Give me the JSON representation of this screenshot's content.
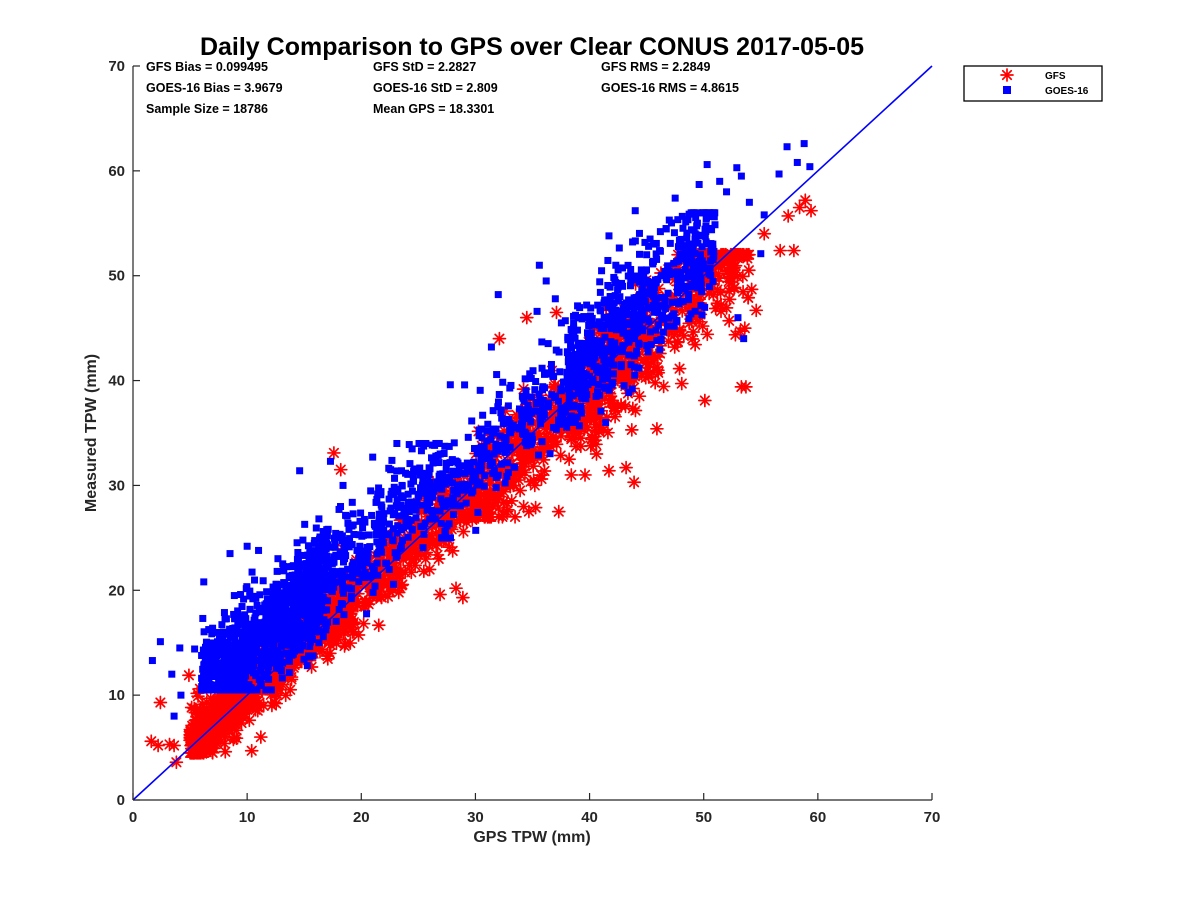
{
  "chart_data": {
    "type": "scatter",
    "title": "Daily Comparison to GPS over Clear CONUS 2017-05-05",
    "xlabel": "GPS TPW (mm)",
    "ylabel": "Measured TPW (mm)",
    "xlim": [
      0,
      70
    ],
    "ylim": [
      0,
      70
    ],
    "xticks": [
      "0",
      "10",
      "20",
      "30",
      "40",
      "50",
      "60",
      "70"
    ],
    "yticks": [
      "0",
      "10",
      "20",
      "30",
      "40",
      "50",
      "60",
      "70"
    ],
    "grid": false,
    "legend_position": "outside-top-right",
    "stats": [
      [
        "GFS Bias = 0.099495",
        "GFS StD = 2.2827",
        "GFS RMS = 2.2849"
      ],
      [
        "GOES-16 Bias = 3.9679",
        "GOES-16 StD = 2.809",
        "GOES-16 RMS = 4.8615"
      ],
      [
        "Sample Size = 18786",
        "Mean GPS = 18.3301"
      ]
    ],
    "reference_line": {
      "name": "1:1",
      "x": [
        0,
        70
      ],
      "y": [
        0,
        70
      ],
      "color": "#0000ff"
    },
    "series": [
      {
        "name": "GFS",
        "marker": "asterisk",
        "color": "#ff0000",
        "clusters": [
          {
            "x": [
              5,
              18
            ],
            "y": [
              4.5,
              17.5
            ],
            "n": 900,
            "ybias": 0.4,
            "yspread": 1.4
          },
          {
            "x": [
              17,
              30
            ],
            "y": [
              12,
              31
            ],
            "n": 450,
            "ybias": 0.0,
            "yspread": 1.8
          },
          {
            "x": [
              30,
              44
            ],
            "y": [
              27,
              47
            ],
            "n": 420,
            "ybias": -1.0,
            "yspread": 2.4
          },
          {
            "x": [
              40,
              54
            ],
            "y": [
              33,
              52
            ],
            "n": 420,
            "ybias": -0.8,
            "yspread": 2.6
          }
        ],
        "points": [
          [
            1.6,
            5.6
          ],
          [
            2.2,
            5.2
          ],
          [
            2.4,
            9.3
          ],
          [
            3.2,
            5.3
          ],
          [
            3.8,
            3.6
          ],
          [
            3.6,
            5.2
          ],
          [
            4.9,
            11.9
          ],
          [
            10.4,
            4.7
          ],
          [
            11.2,
            6.0
          ],
          [
            17.6,
            33.1
          ],
          [
            18.2,
            31.5
          ],
          [
            32.3,
            29.6
          ],
          [
            35.2,
            30.0
          ],
          [
            37.3,
            27.5
          ],
          [
            32.1,
            44.0
          ],
          [
            34.5,
            46.0
          ],
          [
            37.1,
            46.5
          ],
          [
            38.4,
            31.0
          ],
          [
            39.6,
            31.0
          ],
          [
            41.7,
            31.4
          ],
          [
            43.2,
            31.7
          ],
          [
            43.9,
            30.3
          ],
          [
            43.7,
            35.3
          ],
          [
            45.9,
            35.4
          ],
          [
            50.1,
            38.1
          ],
          [
            53.3,
            39.4
          ],
          [
            53.7,
            39.4
          ],
          [
            53.2,
            44.7
          ],
          [
            53.6,
            45.0
          ],
          [
            53.9,
            47.9
          ],
          [
            54.2,
            48.7
          ],
          [
            54.6,
            46.7
          ],
          [
            56.7,
            52.4
          ],
          [
            57.9,
            52.4
          ],
          [
            57.4,
            55.7
          ],
          [
            58.4,
            56.5
          ],
          [
            58.9,
            57.2
          ],
          [
            59.4,
            56.2
          ],
          [
            55.3,
            54.0
          ],
          [
            28.9,
            19.3
          ],
          [
            28.3,
            20.2
          ],
          [
            26.9,
            19.6
          ],
          [
            52.4,
            49.4
          ]
        ]
      },
      {
        "name": "GOES-16",
        "marker": "square",
        "color": "#0000ff",
        "clusters": [
          {
            "x": [
              6,
              17
            ],
            "y": [
              10.5,
              27
            ],
            "n": 1100,
            "ybias": 4.2,
            "yspread": 2.4
          },
          {
            "x": [
              14,
              27
            ],
            "y": [
              15,
              34
            ],
            "n": 450,
            "ybias": 4.0,
            "yspread": 2.6
          },
          {
            "x": [
              27,
              40
            ],
            "y": [
              25,
              46
            ],
            "n": 300,
            "ybias": 2.0,
            "yspread": 2.6
          },
          {
            "x": [
              38,
              51
            ],
            "y": [
              36,
              56
            ],
            "n": 600,
            "ybias": 2.6,
            "yspread": 2.8
          }
        ],
        "points": [
          [
            1.7,
            13.3
          ],
          [
            2.4,
            15.1
          ],
          [
            3.4,
            12.0
          ],
          [
            4.1,
            14.5
          ],
          [
            3.6,
            8.0
          ],
          [
            4.2,
            10.0
          ],
          [
            5.4,
            14.4
          ],
          [
            6.2,
            20.8
          ],
          [
            8.5,
            23.5
          ],
          [
            10.0,
            24.2
          ],
          [
            11.0,
            23.8
          ],
          [
            14.6,
            31.4
          ],
          [
            17.3,
            32.3
          ],
          [
            18.4,
            30.0
          ],
          [
            21.0,
            32.7
          ],
          [
            24.2,
            33.9
          ],
          [
            27.8,
            39.6
          ],
          [
            31.4,
            43.2
          ],
          [
            32.0,
            48.2
          ],
          [
            35.6,
            51.0
          ],
          [
            36.2,
            49.5
          ],
          [
            37.0,
            47.8
          ],
          [
            35.4,
            46.6
          ],
          [
            38.6,
            45.0
          ],
          [
            41.7,
            53.8
          ],
          [
            42.3,
            51.0
          ],
          [
            45.0,
            52.0
          ],
          [
            46.7,
            54.5
          ],
          [
            47.5,
            57.4
          ],
          [
            49.6,
            58.7
          ],
          [
            50.3,
            60.6
          ],
          [
            51.4,
            59.0
          ],
          [
            52.0,
            58.0
          ],
          [
            52.9,
            60.3
          ],
          [
            53.3,
            59.5
          ],
          [
            54.0,
            57.0
          ],
          [
            55.0,
            52.1
          ],
          [
            56.6,
            59.7
          ],
          [
            57.3,
            62.3
          ],
          [
            58.2,
            60.8
          ],
          [
            58.8,
            62.6
          ],
          [
            59.3,
            60.4
          ],
          [
            53.0,
            46.0
          ],
          [
            53.5,
            44.0
          ],
          [
            55.3,
            55.8
          ],
          [
            45.3,
            53.5
          ],
          [
            44.0,
            56.2
          ]
        ]
      }
    ]
  }
}
